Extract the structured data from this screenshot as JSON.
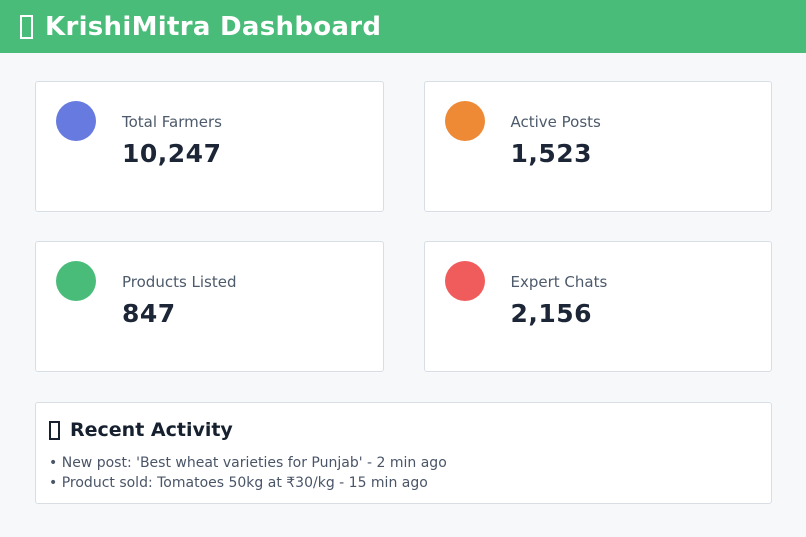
{
  "header": {
    "title": "KrishiMitra Dashboard",
    "bg_color": "#4abc79",
    "title_color": "#ffffff",
    "emoji_icon": "missing-glyph-box"
  },
  "stats": [
    {
      "label": "Total Farmers",
      "value": "10,247",
      "circle_color": "#667ae0"
    },
    {
      "label": "Active Posts",
      "value": "1,523",
      "circle_color": "#ee8936"
    },
    {
      "label": "Products Listed",
      "value": "847",
      "circle_color": "#4abc79"
    },
    {
      "label": "Expert Chats",
      "value": "2,156",
      "circle_color": "#f05c5c"
    }
  ],
  "activity": {
    "title": "Recent Activity",
    "emoji_icon": "missing-glyph-box",
    "items": [
      "New post: 'Best wheat varieties for Punjab' - 2 min ago",
      "Product sold: Tomatoes 50kg at ₹30/kg - 15 min ago"
    ]
  }
}
